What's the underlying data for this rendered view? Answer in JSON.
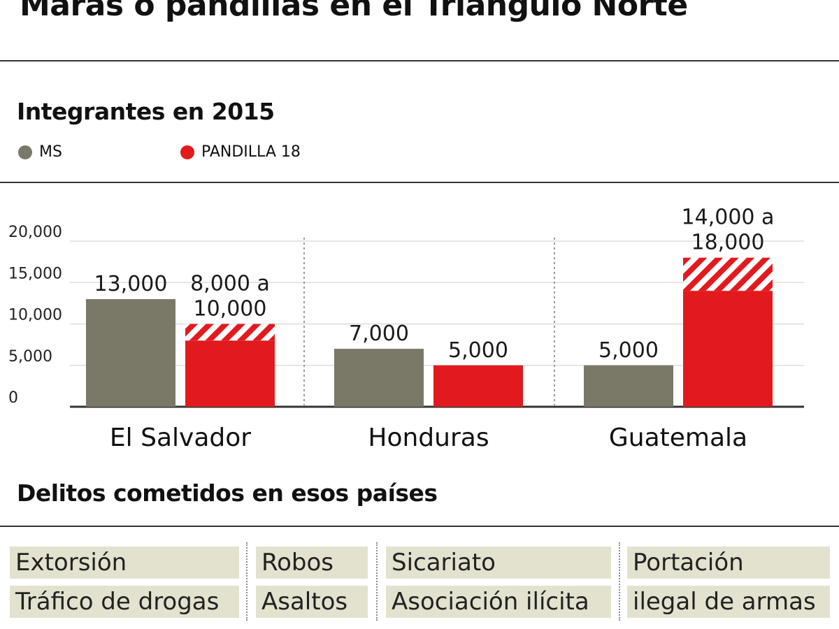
{
  "title": "Maras o pandillas en el Triángulo Norte",
  "subtitle": "Integrantes en 2015",
  "crimes_title": "Delitos cometidos en esos países",
  "colors": {
    "ms": "#7a7968",
    "p18": "#e21a1d",
    "axis": "#333333",
    "grid": "#dddddd",
    "crime_bg": "#e3e2cf"
  },
  "chart_data": {
    "type": "bar",
    "title": "Integrantes en 2015",
    "categories": [
      "El Salvador",
      "Honduras",
      "Guatemala"
    ],
    "ylim": [
      0,
      20000
    ],
    "yticks": [
      "20,000",
      "15,000",
      "10,000",
      "5,000",
      "0"
    ],
    "grid": true,
    "legend_position": "top-left",
    "series": [
      {
        "name": "MS",
        "values": [
          13000,
          7000,
          5000
        ],
        "labels": [
          [
            "13,000"
          ],
          [
            "7,000"
          ],
          [
            "5,000"
          ]
        ]
      },
      {
        "name": "PANDILLA 18",
        "values": [
          8000,
          5000,
          14000
        ],
        "max_values": [
          10000,
          5000,
          18000
        ],
        "labels": [
          [
            "8,000 a",
            "10,000"
          ],
          [
            "5,000"
          ],
          [
            "14,000 a",
            "18,000"
          ]
        ]
      }
    ]
  },
  "crimes": [
    [
      "Extorsión",
      "Tráfico de drogas"
    ],
    [
      "Robos",
      "Asaltos"
    ],
    [
      "Sicariato",
      "Asociación ilícita"
    ],
    [
      "Portación",
      "ilegal de armas"
    ]
  ]
}
